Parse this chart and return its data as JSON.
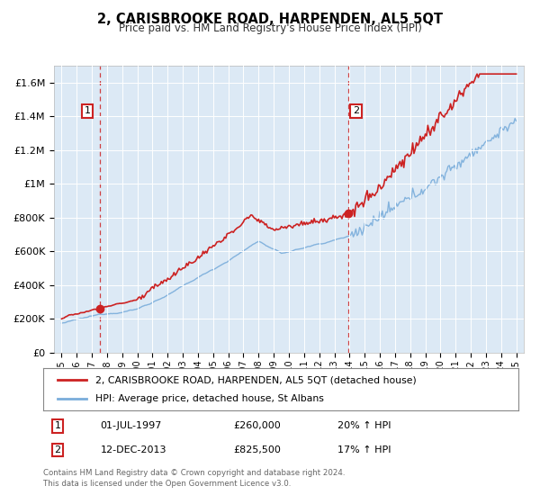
{
  "title": "2, CARISBROOKE ROAD, HARPENDEN, AL5 5QT",
  "subtitle": "Price paid vs. HM Land Registry's House Price Index (HPI)",
  "background_color": "#ffffff",
  "plot_bg_color": "#dce9f5",
  "ylabel_ticks": [
    "£0",
    "£200K",
    "£400K",
    "£600K",
    "£800K",
    "£1M",
    "£1.2M",
    "£1.4M",
    "£1.6M"
  ],
  "ytick_values": [
    0,
    200000,
    400000,
    600000,
    800000,
    1000000,
    1200000,
    1400000,
    1600000
  ],
  "ylim": [
    0,
    1700000
  ],
  "xlim_start": 1994.5,
  "xlim_end": 2025.5,
  "purchase1_x": 1997.5,
  "purchase1_y": 260000,
  "purchase2_x": 2013.92,
  "purchase2_y": 825500,
  "purchase1_date": "01-JUL-1997",
  "purchase1_price": "£260,000",
  "purchase1_hpi": "20% ↑ HPI",
  "purchase2_date": "12-DEC-2013",
  "purchase2_price": "£825,500",
  "purchase2_hpi": "17% ↑ HPI",
  "legend_line1": "2, CARISBROOKE ROAD, HARPENDEN, AL5 5QT (detached house)",
  "legend_line2": "HPI: Average price, detached house, St Albans",
  "footer": "Contains HM Land Registry data © Crown copyright and database right 2024.\nThis data is licensed under the Open Government Licence v3.0.",
  "line_color_red": "#cc2222",
  "line_color_blue": "#7aaddb",
  "marker_color": "#cc2222",
  "dashed_line_color": "#cc2222",
  "grid_color": "#ffffff",
  "annotation_box_color": "#cc2222"
}
